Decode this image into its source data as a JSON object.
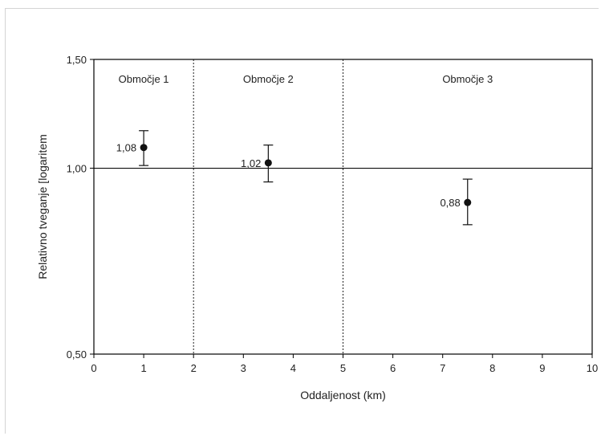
{
  "chart_data": {
    "type": "scatter",
    "xlabel": "Oddaljenost (km)",
    "ylabel": "Relativno tveganje [logaritem",
    "xlim": [
      0,
      10
    ],
    "ylim": [
      0.5,
      1.5
    ],
    "y_scale": "log",
    "xticks": [
      0,
      1,
      2,
      3,
      4,
      5,
      6,
      7,
      8,
      9,
      10
    ],
    "xtick_labels": [
      "0",
      "1",
      "2",
      "3",
      "4",
      "5",
      "6",
      "7",
      "8",
      "9",
      "10"
    ],
    "yticks": [
      0.5,
      1.0,
      1.5
    ],
    "ytick_labels": [
      "0,50",
      "1,00",
      "1,50"
    ],
    "reference_line_y": 1.0,
    "zone_boundaries": [
      2,
      5
    ],
    "zones": [
      {
        "label": "Območje 1",
        "x_from": 0,
        "x_to": 2
      },
      {
        "label": "Območje 2",
        "x_from": 2,
        "x_to": 5
      },
      {
        "label": "Območje 3",
        "x_from": 5,
        "x_to": 10
      }
    ],
    "points": [
      {
        "x": 1,
        "y": 1.08,
        "ci_low": 1.01,
        "ci_high": 1.15,
        "label": "1,08"
      },
      {
        "x": 3.5,
        "y": 1.02,
        "ci_low": 0.95,
        "ci_high": 1.09,
        "label": "1,02"
      },
      {
        "x": 7.5,
        "y": 0.88,
        "ci_low": 0.81,
        "ci_high": 0.96,
        "label": "0,88"
      }
    ],
    "grid": false,
    "colors": {
      "axis": "#000000",
      "marker": "#111111",
      "text": "#222222"
    }
  }
}
